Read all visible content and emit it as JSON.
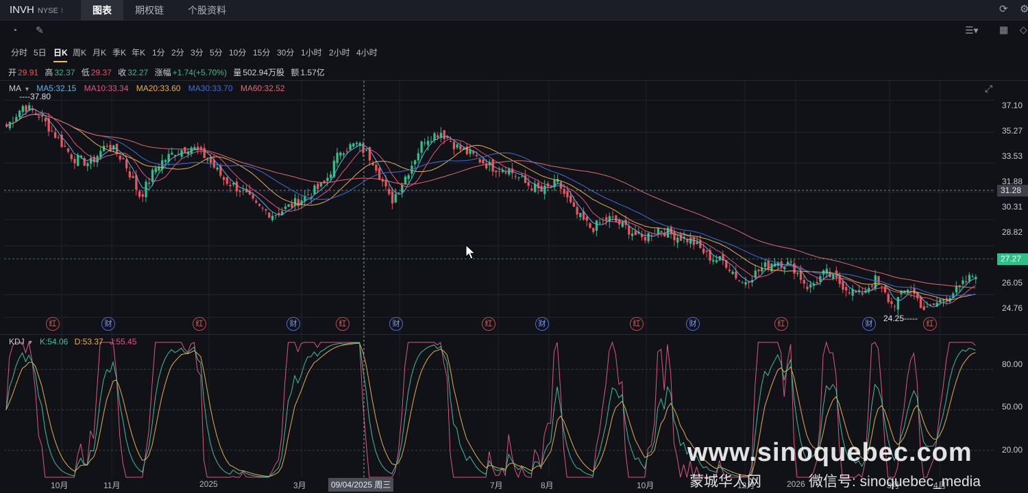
{
  "header": {
    "ticker": "INVH",
    "exchange": "NYSE",
    "divider": "I",
    "tabs": [
      {
        "label": "图表",
        "active": true
      },
      {
        "label": "期权链",
        "active": false
      },
      {
        "label": "个股资料",
        "active": false
      }
    ]
  },
  "periods": [
    "分时",
    "5日",
    "日K",
    "周K",
    "月K",
    "季K",
    "年K",
    "1分",
    "2分",
    "3分",
    "5分",
    "10分",
    "15分",
    "30分",
    "1小时",
    "2小时",
    "4小时"
  ],
  "active_period": "日K",
  "ohlc": {
    "open_label": "开",
    "open": "29.91",
    "high_label": "高",
    "high": "32.37",
    "low_label": "低",
    "low": "29.37",
    "close_label": "收",
    "close": "32.27",
    "change_label": "涨幅",
    "change": "+1.74(+5.70%)",
    "volume_label": "量",
    "volume": "502.94万股",
    "amount_label": "额",
    "amount": "1.57亿"
  },
  "ma_legend": {
    "name": "MA",
    "items": [
      {
        "label": "MA5:32.15",
        "color": "#5fb3e6"
      },
      {
        "label": "MA10:33.34",
        "color": "#e0577e"
      },
      {
        "label": "MA20:33.60",
        "color": "#e8b04a"
      },
      {
        "label": "MA30:33.70",
        "color": "#3f6fd8"
      },
      {
        "label": "MA60:32.52",
        "color": "#e06a6a"
      }
    ]
  },
  "kdj_legend": {
    "name": "KDJ",
    "items": [
      {
        "label": "K:54.06",
        "color": "#3fbf9e"
      },
      {
        "label": "D:53.37",
        "color": "#e8b04a"
      },
      {
        "label": "J:55.45",
        "color": "#e0577e"
      }
    ]
  },
  "price_axis": [
    "37.10",
    "35.27",
    "33.53",
    "31.88",
    "30.31",
    "28.82",
    "26.05",
    "24.76"
  ],
  "price_tags": {
    "crosshair": "31.28",
    "last": "27.27"
  },
  "kdj_axis": [
    "80.00",
    "50.00",
    "20.00"
  ],
  "x_axis": [
    "10月",
    "11月",
    "2025",
    "3月",
    "7月",
    "8月",
    "10月",
    "12月",
    "2026",
    "3月",
    "4月"
  ],
  "crosshair_date": "09/04/2025 周三",
  "annotations": {
    "high": "37.80",
    "low": "24.25"
  },
  "events": [
    "红",
    "财",
    "红",
    "财",
    "红",
    "财",
    "红",
    "财",
    "红",
    "财",
    "红",
    "财",
    "红"
  ],
  "watermark": {
    "site": "www.sinoquebec.com",
    "cn": "蒙城华人网",
    "wechat": "微信号: sinoquebec_media"
  },
  "colors": {
    "up": "#2fbf89",
    "down": "#e8565c",
    "accent": "#f0c929",
    "background": "#101218"
  },
  "chart_data": {
    "type": "candlestick",
    "symbol": "INVH",
    "y_axis_ticks": [
      24.76,
      26.05,
      28.82,
      30.31,
      31.88,
      33.53,
      35.27,
      37.1
    ],
    "ylim": [
      23.8,
      38.2
    ],
    "period_high": 37.8,
    "period_low": 24.25,
    "close_series": [
      35.6,
      36.8,
      36.2,
      35.0,
      33.8,
      33.5,
      34.6,
      33.7,
      31.6,
      33.4,
      34.1,
      34.5,
      33.8,
      32.6,
      32.0,
      31.0,
      30.6,
      31.1,
      31.7,
      32.3,
      34.3,
      34.6,
      33.6,
      31.3,
      33.0,
      34.9,
      35.3,
      34.4,
      33.9,
      33.3,
      33.2,
      32.4,
      31.9,
      32.4,
      30.7,
      29.8,
      30.4,
      29.9,
      29.2,
      29.8,
      29.4,
      29.1,
      28.2,
      27.9,
      26.7,
      27.4,
      28.0,
      27.7,
      26.4,
      27.3,
      26.6,
      26.0,
      26.9,
      25.4,
      26.5,
      25.1,
      25.8,
      26.4,
      27.3
    ],
    "kdj": {
      "K_last": 54.06,
      "D_last": 53.37,
      "J_last": 55.45,
      "y_axis_ticks": [
        20,
        50,
        80
      ],
      "ylim": [
        0,
        100
      ]
    }
  }
}
